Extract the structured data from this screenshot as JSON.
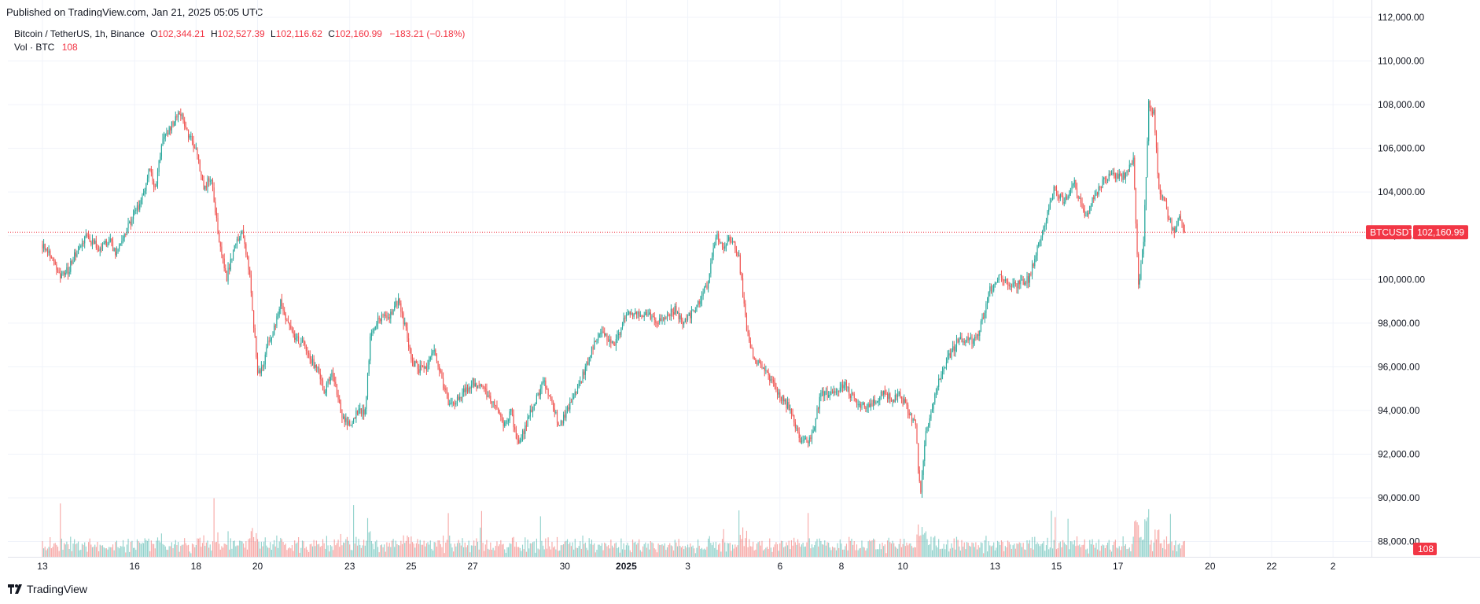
{
  "header": {
    "published": "Published on TradingView.com, Jan 21, 2025 05:05 UTC"
  },
  "legend": {
    "symbol": "Bitcoin / TetherUS, 1h, Binance",
    "o_label": "O",
    "o_value": "102,344.21",
    "h_label": "H",
    "h_value": "102,527.39",
    "l_label": "L",
    "l_value": "102,116.62",
    "c_label": "C",
    "c_value": "102,160.99",
    "change": "−183.21 (−0.18%)",
    "vol_label": "Vol · BTC",
    "vol_value": "108"
  },
  "price_tag": {
    "ticker": "BTCUSDT",
    "price": "102,160.99",
    "volume": "108"
  },
  "footer": {
    "brand": "TradingView"
  },
  "colors": {
    "up": "#26A69A",
    "down": "#EF5350",
    "tag_red": "#F23645",
    "grid": "#F0F3FA"
  },
  "chart_data": {
    "type": "candlestick",
    "interval": "1h",
    "title": "Bitcoin / TetherUS, 1h, Binance",
    "y_ticks": [
      "88,000.00",
      "90,000.00",
      "92,000.00",
      "94,000.00",
      "96,000.00",
      "98,000.00",
      "100,000.00",
      "102,000.00",
      "104,000.00",
      "106,000.00",
      "108,000.00",
      "110,000.00",
      "112,000.00"
    ],
    "y_tick_values": [
      88000,
      90000,
      92000,
      94000,
      96000,
      98000,
      100000,
      102000,
      104000,
      106000,
      108000,
      110000,
      112000
    ],
    "ylim": [
      87300,
      112000
    ],
    "x_ticks": [
      "13",
      "16",
      "18",
      "20",
      "23",
      "25",
      "27",
      "30",
      "2025",
      "3",
      "6",
      "8",
      "10",
      "13",
      "15",
      "17",
      "20",
      "22",
      "2"
    ],
    "x_tick_hours": [
      0,
      72,
      120,
      168,
      240,
      288,
      336,
      408,
      456,
      504,
      576,
      624,
      672,
      744,
      792,
      840,
      912,
      960,
      1008
    ],
    "x_range_hours": [
      -27,
      1038
    ],
    "last_close": 102160.99,
    "price_anchors": [
      [
        0,
        101600
      ],
      [
        8,
        101000
      ],
      [
        14,
        100200
      ],
      [
        20,
        100400
      ],
      [
        26,
        101200
      ],
      [
        34,
        101900
      ],
      [
        45,
        101400
      ],
      [
        52,
        101800
      ],
      [
        58,
        101100
      ],
      [
        66,
        102300
      ],
      [
        72,
        103000
      ],
      [
        78,
        103700
      ],
      [
        84,
        105200
      ],
      [
        88,
        104100
      ],
      [
        94,
        106400
      ],
      [
        100,
        107000
      ],
      [
        108,
        107600
      ],
      [
        114,
        106600
      ],
      [
        120,
        106000
      ],
      [
        126,
        104200
      ],
      [
        132,
        104700
      ],
      [
        138,
        101700
      ],
      [
        144,
        100100
      ],
      [
        150,
        101600
      ],
      [
        156,
        102300
      ],
      [
        162,
        100100
      ],
      [
        166,
        97200
      ],
      [
        168,
        95600
      ],
      [
        172,
        95900
      ],
      [
        176,
        97200
      ],
      [
        180,
        97600
      ],
      [
        186,
        98900
      ],
      [
        192,
        97900
      ],
      [
        198,
        97300
      ],
      [
        204,
        97100
      ],
      [
        210,
        96300
      ],
      [
        216,
        95700
      ],
      [
        220,
        94700
      ],
      [
        226,
        95900
      ],
      [
        234,
        93800
      ],
      [
        240,
        93300
      ],
      [
        246,
        94000
      ],
      [
        252,
        93900
      ],
      [
        256,
        97300
      ],
      [
        262,
        98200
      ],
      [
        270,
        98300
      ],
      [
        278,
        99000
      ],
      [
        284,
        97700
      ],
      [
        288,
        96300
      ],
      [
        294,
        95900
      ],
      [
        300,
        95900
      ],
      [
        306,
        96700
      ],
      [
        312,
        95400
      ],
      [
        318,
        94200
      ],
      [
        324,
        94500
      ],
      [
        336,
        95300
      ],
      [
        342,
        95100
      ],
      [
        348,
        94700
      ],
      [
        354,
        94200
      ],
      [
        360,
        93400
      ],
      [
        366,
        93900
      ],
      [
        372,
        92400
      ],
      [
        378,
        93400
      ],
      [
        386,
        94600
      ],
      [
        392,
        95400
      ],
      [
        398,
        94200
      ],
      [
        404,
        93300
      ],
      [
        412,
        94300
      ],
      [
        420,
        95300
      ],
      [
        426,
        96200
      ],
      [
        432,
        97300
      ],
      [
        438,
        97600
      ],
      [
        446,
        96900
      ],
      [
        452,
        97800
      ],
      [
        458,
        98600
      ],
      [
        464,
        98300
      ],
      [
        470,
        98500
      ],
      [
        478,
        98100
      ],
      [
        486,
        98300
      ],
      [
        494,
        98600
      ],
      [
        500,
        98000
      ],
      [
        510,
        98600
      ],
      [
        520,
        99900
      ],
      [
        526,
        102000
      ],
      [
        532,
        101500
      ],
      [
        538,
        101900
      ],
      [
        544,
        101000
      ],
      [
        550,
        97600
      ],
      [
        556,
        96300
      ],
      [
        566,
        95700
      ],
      [
        574,
        94800
      ],
      [
        582,
        94200
      ],
      [
        592,
        92700
      ],
      [
        600,
        92600
      ],
      [
        608,
        94700
      ],
      [
        616,
        94700
      ],
      [
        626,
        95200
      ],
      [
        636,
        94300
      ],
      [
        646,
        94100
      ],
      [
        656,
        94800
      ],
      [
        664,
        94500
      ],
      [
        670,
        94700
      ],
      [
        676,
        94000
      ],
      [
        682,
        93400
      ],
      [
        684,
        91300
      ],
      [
        686,
        90400
      ],
      [
        690,
        92900
      ],
      [
        694,
        94000
      ],
      [
        700,
        95400
      ],
      [
        708,
        96500
      ],
      [
        716,
        97300
      ],
      [
        724,
        97200
      ],
      [
        730,
        97300
      ],
      [
        740,
        99500
      ],
      [
        748,
        100200
      ],
      [
        756,
        99600
      ],
      [
        762,
        99800
      ],
      [
        770,
        100000
      ],
      [
        780,
        102000
      ],
      [
        790,
        104100
      ],
      [
        798,
        103600
      ],
      [
        806,
        104400
      ],
      [
        814,
        102800
      ],
      [
        820,
        103600
      ],
      [
        830,
        104600
      ],
      [
        838,
        104800
      ],
      [
        846,
        104700
      ],
      [
        852,
        105500
      ],
      [
        856,
        99600
      ],
      [
        860,
        101700
      ],
      [
        864,
        108000
      ],
      [
        868,
        107600
      ],
      [
        872,
        104100
      ],
      [
        876,
        103700
      ],
      [
        880,
        102700
      ],
      [
        884,
        102200
      ],
      [
        888,
        102900
      ],
      [
        892,
        102161
      ]
    ]
  }
}
